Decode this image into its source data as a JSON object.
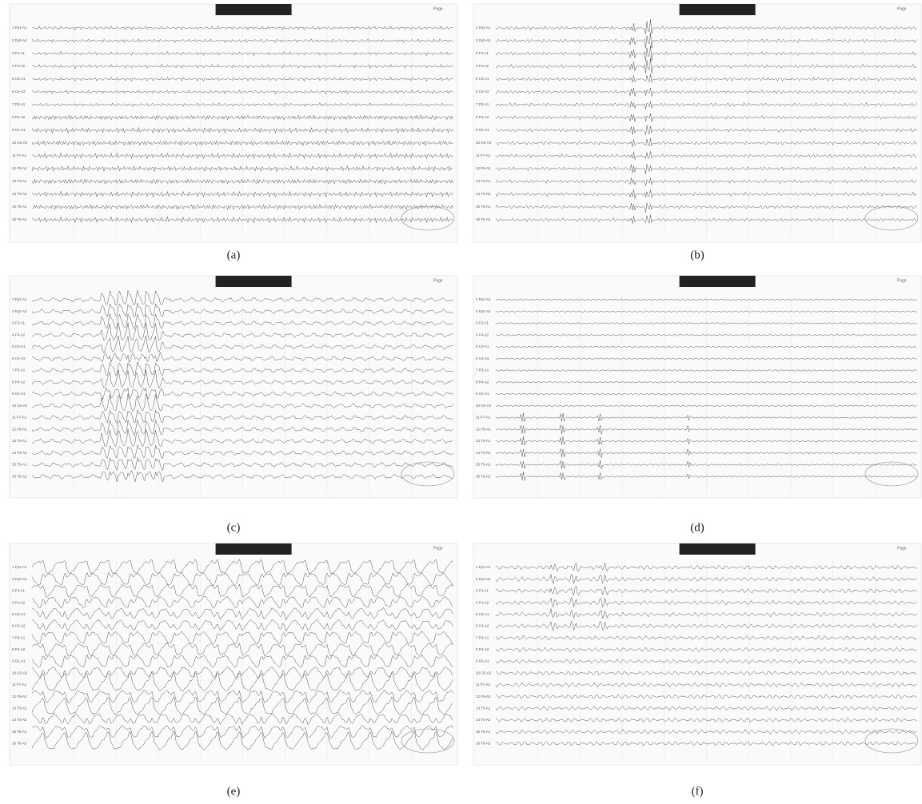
{
  "header": {
    "page": "Page"
  },
  "channels": [
    "1 Fp1-A1",
    "2 Fp2-A2",
    "3 F3-A1",
    "4 F4-A2",
    "5 C3-A1",
    "6 C4-A2",
    "7 P3-A1",
    "8 P4-A2",
    "9 O1-A1",
    "10 O2-A2",
    "11 F7-A1",
    "12 F8-A2",
    "13 T3-A1",
    "14 T4-A2",
    "15 T5-A1",
    "16 T6-A2"
  ],
  "panels": [
    {
      "label": "(a)"
    },
    {
      "label": "(b)"
    },
    {
      "label": "(c)"
    },
    {
      "label": "(d)"
    },
    {
      "label": "(e)"
    },
    {
      "label": "(f)"
    }
  ]
}
